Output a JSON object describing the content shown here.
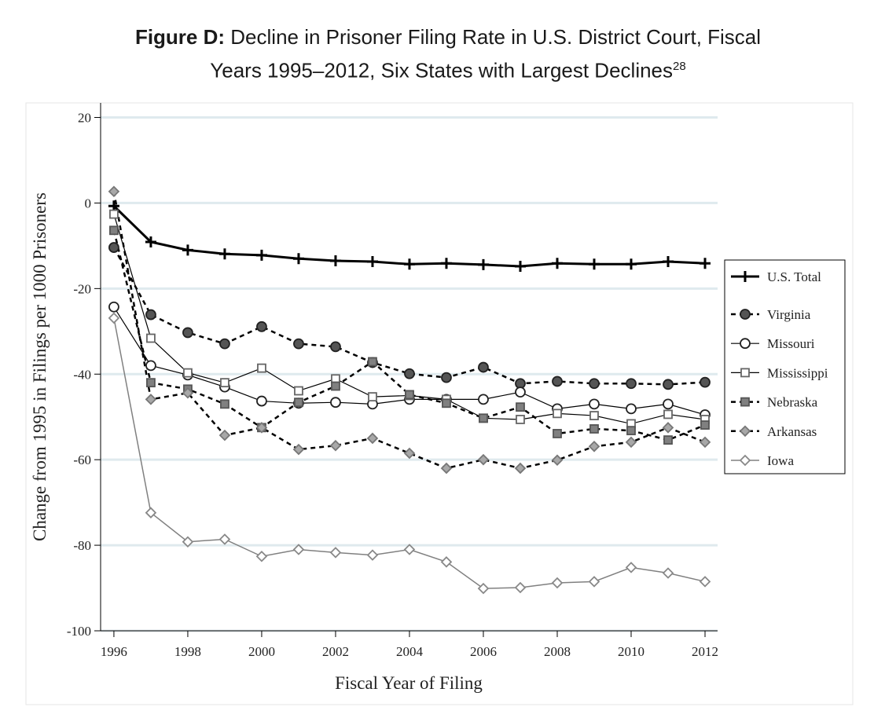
{
  "chart_data": {
    "type": "line",
    "title_label": "Figure D:",
    "title": "Decline in Prisoner Filing Rate in U.S. District Court, Fiscal Years 1995–2012, Six States with Largest Declines",
    "title_footnote": "28",
    "x_label": "Fiscal Year of Filing",
    "y_label": "Change from 1995 in Filings per 1000 Prisoners",
    "x": [
      1996,
      1997,
      1998,
      1999,
      2000,
      2001,
      2002,
      2003,
      2004,
      2005,
      2006,
      2007,
      2008,
      2009,
      2010,
      2011,
      2012
    ],
    "xlim": [
      1995.64,
      2012.34
    ],
    "xticks": [
      1996,
      1998,
      2000,
      2002,
      2004,
      2006,
      2008,
      2010,
      2012
    ],
    "ylim": [
      -100,
      23.4
    ],
    "yticks": [
      -100,
      -80,
      -60,
      -40,
      -20,
      0,
      20
    ],
    "grid": true,
    "legend_position": "right",
    "series": [
      {
        "name": "U.S. Total",
        "color": "#000000",
        "dash": false,
        "width": 3,
        "marker": "plus",
        "marker_fill": "#000000",
        "values": [
          -0.7,
          -9.1,
          -11,
          -11.9,
          -12.2,
          -13,
          -13.5,
          -13.7,
          -14.3,
          -14.1,
          -14.4,
          -14.8,
          -14.1,
          -14.3,
          -14.3,
          -13.7,
          -14.1
        ]
      },
      {
        "name": "Virginia",
        "color": "#000000",
        "dash": true,
        "width": 2.5,
        "marker": "circle",
        "marker_fill": "#555555",
        "values": [
          -10.4,
          -26.1,
          -30.3,
          -32.9,
          -28.9,
          -32.9,
          -33.6,
          -37.3,
          -39.9,
          -40.8,
          -38.4,
          -42.2,
          -41.7,
          -42.2,
          -42.2,
          -42.4,
          -41.9
        ]
      },
      {
        "name": "Missouri",
        "color": "#000000",
        "dash": false,
        "width": 1.2,
        "marker": "circle",
        "marker_fill": "#ffffff",
        "values": [
          -24.3,
          -38,
          -40.2,
          -43,
          -46.3,
          -46.8,
          -46.6,
          -47,
          -45.9,
          -45.9,
          -45.9,
          -44.2,
          -48.1,
          -47,
          -48.1,
          -47,
          -49.5
        ]
      },
      {
        "name": "Mississippi",
        "color": "#000000",
        "dash": false,
        "width": 1.2,
        "marker": "square",
        "marker_fill": "#ffffff",
        "values": [
          -2.6,
          -31.6,
          -39.7,
          -42,
          -38.6,
          -43.9,
          -41.1,
          -45.3,
          -45,
          -45.9,
          -50.3,
          -50.6,
          -49.2,
          -49.7,
          -51.6,
          -49.4,
          -50.6
        ]
      },
      {
        "name": "Nebraska",
        "color": "#000000",
        "dash": true,
        "width": 2.5,
        "marker": "square",
        "marker_fill": "#808080",
        "values": [
          -6.4,
          -42,
          -43.5,
          -47,
          -52.5,
          -46.6,
          -42.8,
          -37.1,
          -44.8,
          -46.8,
          -50.3,
          -47.7,
          -53.9,
          -52.8,
          -53.2,
          -55.4,
          -51.9
        ]
      },
      {
        "name": "Arkansas",
        "color": "#000000",
        "dash": true,
        "width": 2.5,
        "marker": "diamond",
        "marker_fill": "#a8a8a8",
        "values": [
          2.7,
          -45.9,
          -44.4,
          -54.3,
          -52.5,
          -57.6,
          -56.7,
          -55,
          -58.5,
          -62,
          -60,
          -62,
          -60.1,
          -56.9,
          -55.9,
          -52.5,
          -55.9
        ]
      },
      {
        "name": "Iowa",
        "color": "#808080",
        "dash": false,
        "width": 1.5,
        "marker": "diamond",
        "marker_fill": "#ffffff",
        "values": [
          -26.9,
          -72.4,
          -79.2,
          -78.6,
          -82.6,
          -81,
          -81.7,
          -82.3,
          -81,
          -83.9,
          -90.1,
          -89.9,
          -88.8,
          -88.5,
          -85.2,
          -86.5,
          -88.5
        ]
      }
    ]
  }
}
